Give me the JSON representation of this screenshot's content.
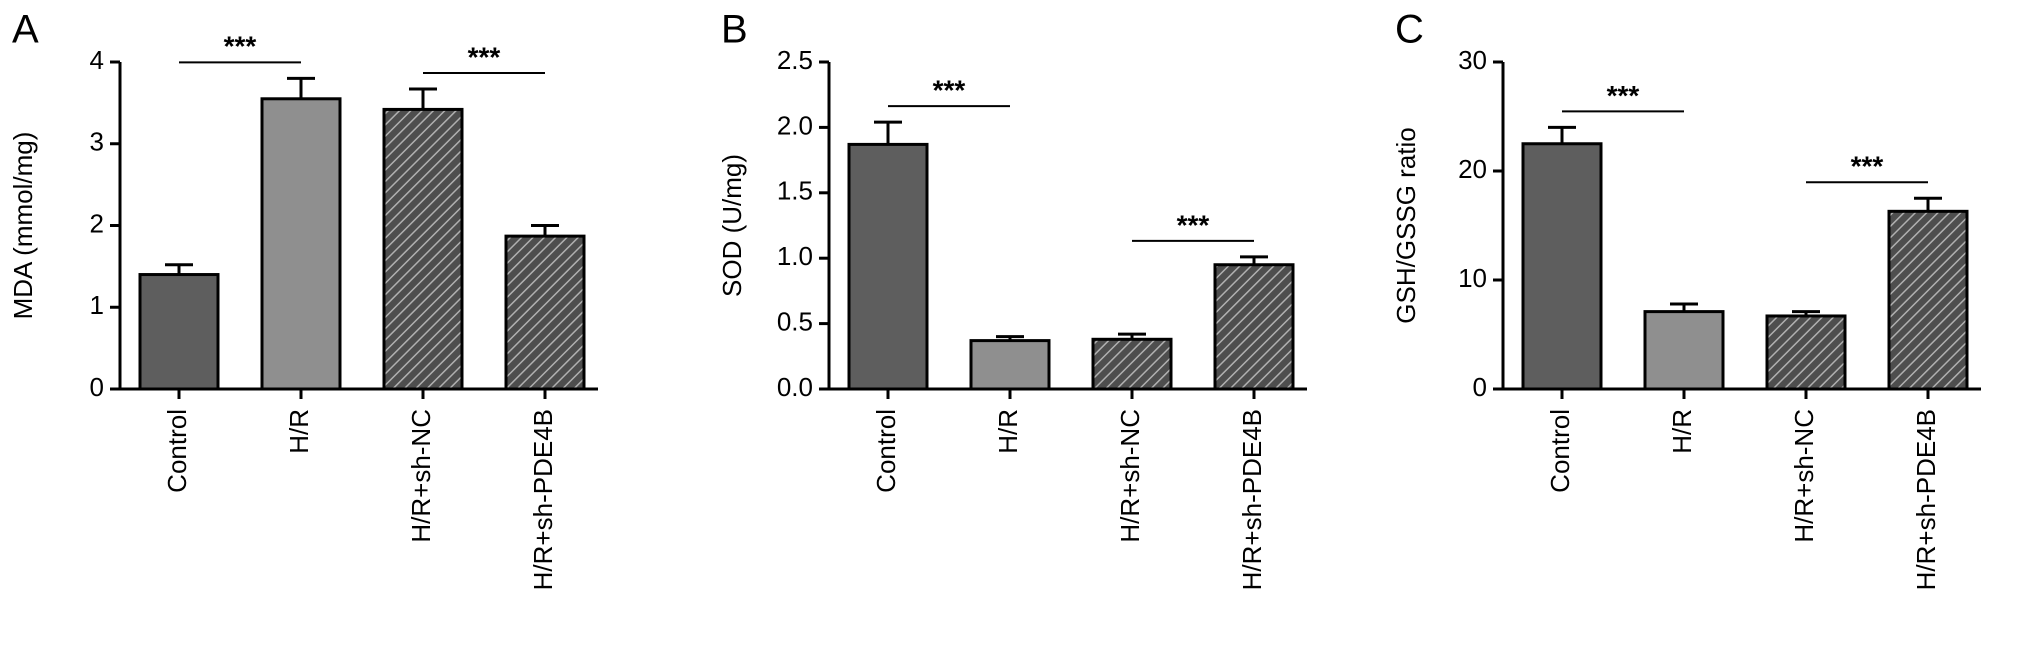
{
  "chart_data": [
    {
      "type": "bar",
      "panel": "A",
      "ylabel": "MDA (mmol/mg)",
      "categories": [
        "Control",
        "H/R",
        "H/R+sh-NC",
        "H/R+sh-PDE4B"
      ],
      "values": [
        1.4,
        3.55,
        3.42,
        1.87
      ],
      "errors": [
        0.12,
        0.25,
        0.25,
        0.13
      ],
      "colors": [
        "#5e5e5e",
        "#8f8f8f",
        "#5e5e5e",
        "#6e6e6e"
      ],
      "hatch": [
        false,
        false,
        true,
        true
      ],
      "ylim": [
        0,
        4
      ],
      "yticks": [
        0,
        1,
        2,
        3,
        4
      ],
      "annotations": [
        {
          "label": "***",
          "between": [
            "Control",
            "H/R"
          ]
        },
        {
          "label": "***",
          "between": [
            "H/R+sh-NC",
            "H/R+sh-PDE4B"
          ]
        }
      ]
    },
    {
      "type": "bar",
      "panel": "B",
      "ylabel": "SOD (U/mg)",
      "categories": [
        "Control",
        "H/R",
        "H/R+sh-NC",
        "H/R+sh-PDE4B"
      ],
      "values": [
        1.87,
        0.37,
        0.38,
        0.95
      ],
      "errors": [
        0.17,
        0.03,
        0.04,
        0.06
      ],
      "colors": [
        "#5e5e5e",
        "#8f8f8f",
        "#5e5e5e",
        "#6e6e6e"
      ],
      "hatch": [
        false,
        false,
        true,
        true
      ],
      "ylim": [
        0,
        2.5
      ],
      "yticks": [
        {
          "value": 0,
          "label": "0.0"
        },
        0.5,
        {
          "value": 1,
          "label": "1.0"
        },
        1.5,
        {
          "value": 2,
          "label": "2.0"
        },
        2.5
      ],
      "annotations": [
        {
          "label": "***",
          "between": [
            "Control",
            "H/R"
          ]
        },
        {
          "label": "***",
          "between": [
            "H/R+sh-NC",
            "H/R+sh-PDE4B"
          ]
        }
      ]
    },
    {
      "type": "bar",
      "panel": "C",
      "ylabel": "GSH/GSSG ratio",
      "categories": [
        "Control",
        "H/R",
        "H/R+sh-NC",
        "H/R+sh-PDE4B"
      ],
      "values": [
        22.5,
        7.1,
        6.7,
        16.3
      ],
      "errors": [
        1.5,
        0.7,
        0.4,
        1.2
      ],
      "colors": [
        "#5e5e5e",
        "#8f8f8f",
        "#5e5e5e",
        "#6e6e6e"
      ],
      "hatch": [
        false,
        false,
        true,
        true
      ],
      "ylim": [
        0,
        30
      ],
      "yticks": [
        0,
        10,
        20,
        30
      ],
      "annotations": [
        {
          "label": "***",
          "between": [
            "Control",
            "H/R"
          ]
        },
        {
          "label": "***",
          "between": [
            "H/R+sh-NC",
            "H/R+sh-PDE4B"
          ]
        }
      ]
    }
  ]
}
